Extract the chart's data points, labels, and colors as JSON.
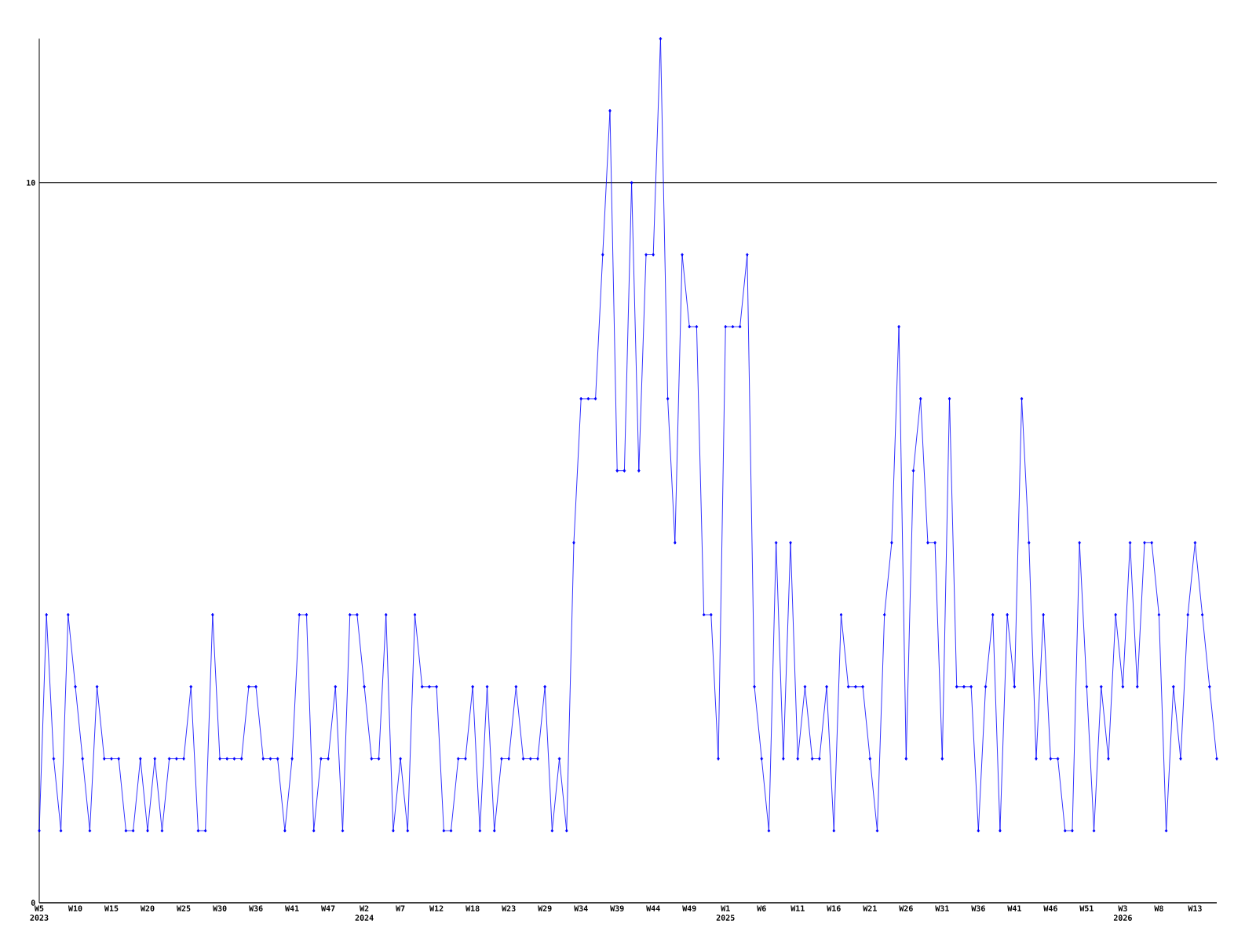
{
  "chart_data": {
    "type": "line",
    "categories": [
      "W5 2023",
      null,
      null,
      null,
      null,
      "W10",
      null,
      null,
      null,
      null,
      "W15",
      null,
      null,
      null,
      null,
      "W20",
      null,
      null,
      null,
      null,
      "W25",
      null,
      null,
      null,
      null,
      "W30",
      null,
      null,
      null,
      null,
      "W36",
      null,
      null,
      null,
      null,
      "W41",
      null,
      null,
      null,
      null,
      "W47",
      null,
      null,
      null,
      null,
      "W2 2024",
      null,
      null,
      null,
      null,
      "W7",
      null,
      null,
      null,
      null,
      "W12",
      null,
      null,
      null,
      null,
      "W18",
      null,
      null,
      null,
      null,
      "W23",
      null,
      null,
      null,
      null,
      "W29",
      null,
      null,
      null,
      null,
      "W34",
      null,
      null,
      null,
      null,
      "W39",
      null,
      null,
      null,
      null,
      "W44",
      null,
      null,
      null,
      null,
      "W49",
      null,
      null,
      null,
      null,
      "W1 2025",
      null,
      null,
      null,
      null,
      "W6",
      null,
      null,
      null,
      null,
      "W11",
      null,
      null,
      null,
      null,
      "W16",
      null,
      null,
      null,
      null,
      "W21",
      null,
      null,
      null,
      null,
      "W26",
      null,
      null,
      null,
      null,
      "W31",
      null,
      null,
      null,
      null,
      "W36",
      null,
      null,
      null,
      null,
      "W41",
      null,
      null,
      null,
      null,
      "W46",
      null,
      null,
      null,
      null,
      "W51",
      null,
      null,
      null,
      null,
      "W3 2026",
      null,
      null,
      null,
      null,
      "W8",
      null,
      null,
      null,
      null,
      "W13",
      null,
      null,
      null
    ],
    "values": [
      1,
      4,
      2,
      1,
      4,
      3,
      2,
      1,
      3,
      2,
      2,
      2,
      1,
      1,
      2,
      1,
      2,
      1,
      2,
      2,
      2,
      3,
      1,
      1,
      4,
      2,
      2,
      2,
      2,
      3,
      3,
      2,
      2,
      2,
      1,
      2,
      4,
      4,
      1,
      2,
      2,
      3,
      1,
      4,
      4,
      3,
      2,
      2,
      4,
      1,
      2,
      1,
      4,
      3,
      3,
      3,
      1,
      1,
      2,
      2,
      3,
      1,
      3,
      1,
      2,
      2,
      3,
      2,
      2,
      2,
      3,
      1,
      2,
      1,
      5,
      7,
      7,
      7,
      9,
      11,
      6,
      6,
      10,
      6,
      9,
      9,
      12,
      7,
      5,
      9,
      8,
      8,
      4,
      4,
      2,
      8,
      8,
      8,
      9,
      3,
      2,
      1,
      5,
      2,
      5,
      2,
      3,
      2,
      2,
      3,
      1,
      4,
      3,
      3,
      3,
      2,
      1,
      4,
      5,
      8,
      2,
      6,
      7,
      5,
      5,
      2,
      7,
      3,
      3,
      3,
      1,
      3,
      4,
      1,
      4,
      3,
      7,
      5,
      2,
      4,
      2,
      2,
      1,
      1,
      5,
      3,
      1,
      3,
      2,
      4,
      3,
      5,
      3,
      5,
      5,
      4,
      1,
      3,
      2,
      4,
      5,
      4,
      3,
      2
    ],
    "color": "#0000ff",
    "ylim": [
      0,
      12
    ],
    "yticks": [
      0,
      10
    ],
    "grid": "y",
    "marker": "diamond",
    "line_style": "solid"
  }
}
